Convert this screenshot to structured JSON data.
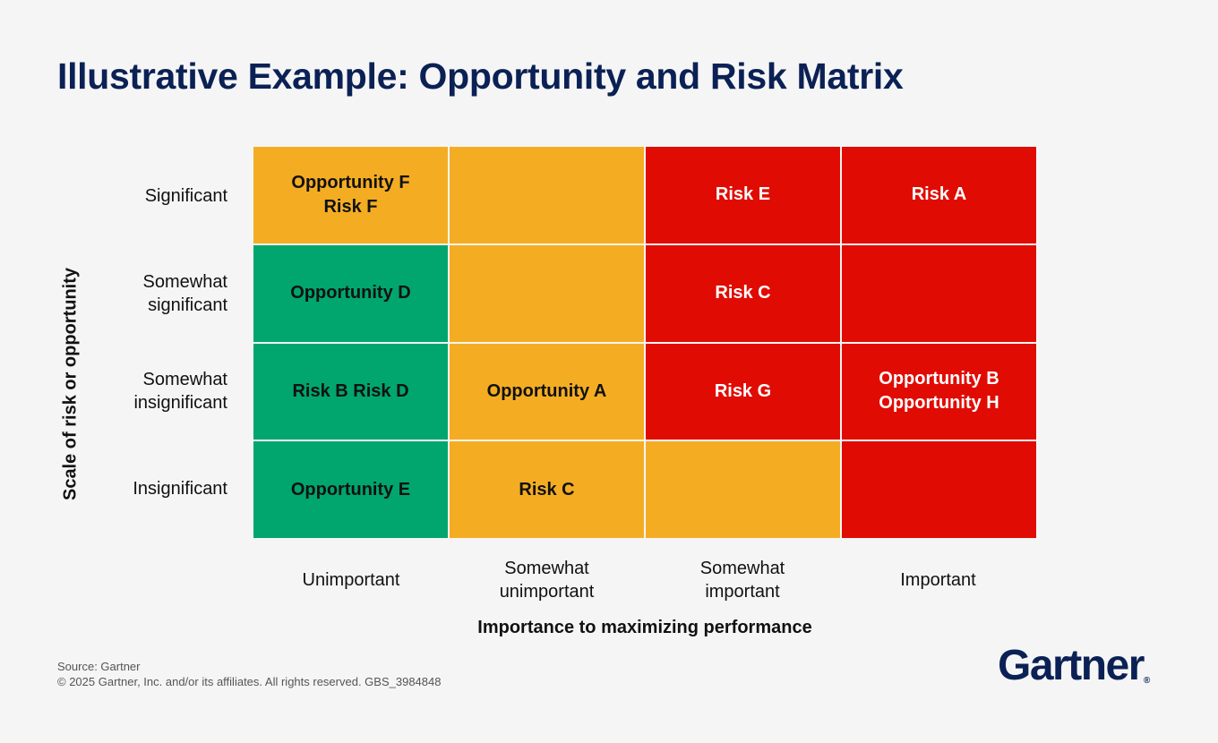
{
  "title": "Illustrative Example: Opportunity and Risk Matrix",
  "chart_data": {
    "type": "heatmap",
    "ylabel": "Scale of risk or opportunity",
    "xlabel": "Importance to maximizing performance",
    "rows": [
      {
        "label_lines": [
          "Significant"
        ]
      },
      {
        "label_lines": [
          "Somewhat",
          "significant"
        ]
      },
      {
        "label_lines": [
          "Somewhat",
          "insignificant"
        ]
      },
      {
        "label_lines": [
          "Insignificant"
        ]
      }
    ],
    "columns": [
      {
        "label_lines": [
          "Unimportant"
        ]
      },
      {
        "label_lines": [
          "Somewhat",
          "unimportant"
        ]
      },
      {
        "label_lines": [
          "Somewhat",
          "important"
        ]
      },
      {
        "label_lines": [
          "Important"
        ]
      }
    ],
    "colors": {
      "green": "#00a66e",
      "amber": "#f4ad23",
      "red": "#e00c03"
    },
    "cells": [
      [
        {
          "color": "amber",
          "items": [
            "Opportunity F",
            "Risk F"
          ]
        },
        {
          "color": "amber",
          "items": []
        },
        {
          "color": "red",
          "items": [
            "Risk E"
          ]
        },
        {
          "color": "red",
          "items": [
            "Risk A"
          ]
        }
      ],
      [
        {
          "color": "green",
          "items": [
            "Opportunity D"
          ]
        },
        {
          "color": "amber",
          "items": []
        },
        {
          "color": "red",
          "items": [
            "Risk C"
          ]
        },
        {
          "color": "red",
          "items": []
        }
      ],
      [
        {
          "color": "green",
          "items": [
            "Risk B Risk D"
          ]
        },
        {
          "color": "amber",
          "items": [
            "Opportunity A"
          ]
        },
        {
          "color": "red",
          "items": [
            "Risk G"
          ]
        },
        {
          "color": "red",
          "items": [
            "Opportunity B",
            "Opportunity H"
          ]
        }
      ],
      [
        {
          "color": "green",
          "items": [
            "Opportunity E"
          ]
        },
        {
          "color": "amber",
          "items": [
            "Risk C"
          ]
        },
        {
          "color": "amber",
          "items": []
        },
        {
          "color": "red",
          "items": []
        }
      ]
    ]
  },
  "footer": {
    "source": "Source: Gartner",
    "copyright": "© 2025 Gartner, Inc. and/or its affiliates. All rights reserved. GBS_3984848"
  },
  "logo": {
    "text": "Gartner",
    "mark": "®"
  }
}
